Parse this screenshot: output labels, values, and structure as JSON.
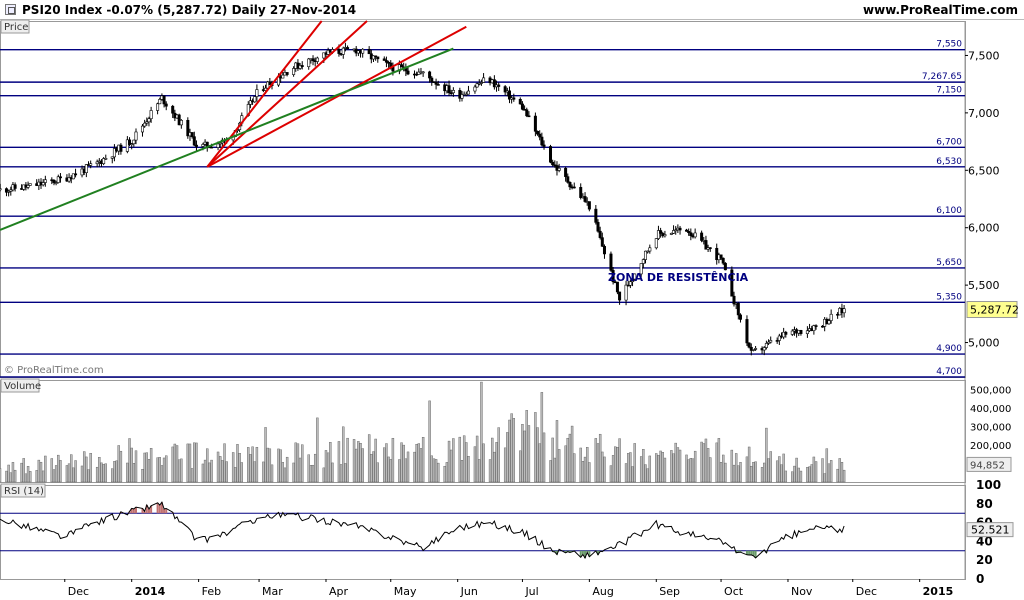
{
  "header": {
    "title": "PSI20 Index   -0.07% (5,287.72)   Daily   27-Nov-2014",
    "brand": "www.ProRealTime.com"
  },
  "panels": {
    "price_label": "Price",
    "volume_label": "Volume",
    "rsi_label": "RSI (14)",
    "watermark": "© ProRealTime.com"
  },
  "colors": {
    "level_line": "#000080",
    "trend_red": "#dd0000",
    "trend_green": "#208020",
    "rsi_over": "#c07070",
    "rsi_under": "#6a9a6a",
    "last_price_bg": "#ffff90",
    "volume_bar": "#bbbbbb"
  },
  "annotation": {
    "text": "ZONA DE RESISTÊNCIA",
    "color": "#000080"
  },
  "chart_data": [
    {
      "type": "candlestick",
      "title": "PSI20 Index",
      "ylim": [
        4700,
        7800
      ],
      "y_ticks": [
        5000,
        5500,
        6000,
        6500,
        7000,
        7500
      ],
      "y_tick_labels": [
        "5,000",
        "5,500",
        "6,000",
        "6,500",
        "7,000",
        "7,500"
      ],
      "last_value": 5287.72,
      "last_value_label": "5,287.72",
      "horizontal_levels": [
        {
          "value": 7550,
          "label": "7,550"
        },
        {
          "value": 7267.65,
          "label": "7,267.65"
        },
        {
          "value": 7150,
          "label": "7,150"
        },
        {
          "value": 6700,
          "label": "6,700"
        },
        {
          "value": 6530,
          "label": "6,530"
        },
        {
          "value": 6100,
          "label": "6,100"
        },
        {
          "value": 5650,
          "label": "5,650"
        },
        {
          "value": 5350,
          "label": "5,350"
        },
        {
          "value": 4900,
          "label": "4,900"
        },
        {
          "value": 4700,
          "label": "4,700"
        }
      ],
      "trend_lines": [
        {
          "color": "red",
          "from": [
            "2014-02-05",
            6530
          ],
          "to": [
            "2014-03-30",
            7800
          ]
        },
        {
          "color": "red",
          "from": [
            "2014-02-05",
            6530
          ],
          "to": [
            "2014-04-20",
            7800
          ]
        },
        {
          "color": "red",
          "from": [
            "2014-02-05",
            6530
          ],
          "to": [
            "2014-06-05",
            7750
          ]
        },
        {
          "color": "green",
          "from": [
            "2013-11-01",
            5980
          ],
          "to": [
            "2014-05-30",
            7560
          ]
        }
      ],
      "x_dates": [
        "2013-11-01",
        "2013-11-15",
        "2013-12-01",
        "2013-12-15",
        "2014-01-01",
        "2014-01-15",
        "2014-02-01",
        "2014-02-15",
        "2014-03-01",
        "2014-03-15",
        "2014-04-01",
        "2014-04-15",
        "2014-05-01",
        "2014-05-15",
        "2014-06-01",
        "2014-06-15",
        "2014-07-01",
        "2014-07-15",
        "2014-08-01",
        "2014-08-15",
        "2014-09-01",
        "2014-09-15",
        "2014-10-01",
        "2014-10-15",
        "2014-11-01",
        "2014-11-15",
        "2014-11-27"
      ],
      "close": [
        6330,
        6360,
        6430,
        6550,
        6760,
        7130,
        6700,
        6760,
        7200,
        7380,
        7520,
        7550,
        7400,
        7350,
        7150,
        7300,
        7050,
        6560,
        6190,
        5380,
        5940,
        5990,
        5720,
        4900,
        5080,
        5150,
        5287.72
      ]
    },
    {
      "type": "bar",
      "title": "Volume",
      "ylim": [
        0,
        550000
      ],
      "y_ticks": [
        100000,
        200000,
        300000,
        400000,
        500000
      ],
      "y_tick_labels": [
        "100,000",
        "200,000",
        "300,000",
        "400,000",
        "500,000"
      ],
      "last_value_label": "94,852",
      "x_dates": [
        "2013-11-01",
        "2013-12-01",
        "2014-01-01",
        "2014-02-01",
        "2014-03-01",
        "2014-04-01",
        "2014-05-01",
        "2014-06-01",
        "2014-07-01",
        "2014-08-01",
        "2014-09-01",
        "2014-10-01",
        "2014-11-01",
        "2014-11-27"
      ],
      "values": [
        90000,
        110000,
        140000,
        160000,
        150000,
        170000,
        200000,
        180000,
        300000,
        200000,
        150000,
        180000,
        110000,
        94852
      ]
    },
    {
      "type": "line",
      "title": "RSI (14)",
      "ylim": [
        0,
        100
      ],
      "y_ticks": [
        0,
        20,
        40,
        60,
        80,
        100
      ],
      "y_tick_labels": [
        "0",
        "20",
        "40",
        "60",
        "80",
        "100"
      ],
      "bands": [
        30,
        70
      ],
      "last_value_label": "52.521",
      "x_dates": [
        "2013-11-01",
        "2013-11-15",
        "2013-12-01",
        "2013-12-15",
        "2014-01-01",
        "2014-01-15",
        "2014-02-01",
        "2014-02-15",
        "2014-03-01",
        "2014-03-15",
        "2014-04-01",
        "2014-04-15",
        "2014-05-01",
        "2014-05-15",
        "2014-06-01",
        "2014-06-15",
        "2014-07-01",
        "2014-07-15",
        "2014-08-01",
        "2014-08-15",
        "2014-09-01",
        "2014-09-15",
        "2014-10-01",
        "2014-10-15",
        "2014-11-01",
        "2014-11-15",
        "2014-11-27"
      ],
      "values": [
        65,
        55,
        45,
        60,
        72,
        80,
        40,
        50,
        66,
        68,
        62,
        56,
        45,
        33,
        55,
        60,
        50,
        30,
        25,
        36,
        58,
        48,
        40,
        22,
        45,
        55,
        52.52
      ]
    }
  ],
  "x_axis": {
    "labels": [
      {
        "date": "2013-12-01",
        "text": "Dec",
        "bold": false
      },
      {
        "date": "2014-01-01",
        "text": "2014",
        "bold": true
      },
      {
        "date": "2014-02-01",
        "text": "Feb",
        "bold": false
      },
      {
        "date": "2014-03-01",
        "text": "Mar",
        "bold": false
      },
      {
        "date": "2014-04-01",
        "text": "Apr",
        "bold": false
      },
      {
        "date": "2014-05-01",
        "text": "May",
        "bold": false
      },
      {
        "date": "2014-06-01",
        "text": "Jun",
        "bold": false
      },
      {
        "date": "2014-07-01",
        "text": "Jul",
        "bold": false
      },
      {
        "date": "2014-08-01",
        "text": "Aug",
        "bold": false
      },
      {
        "date": "2014-09-01",
        "text": "Sep",
        "bold": false
      },
      {
        "date": "2014-10-01",
        "text": "Oct",
        "bold": false
      },
      {
        "date": "2014-11-01",
        "text": "Nov",
        "bold": false
      },
      {
        "date": "2014-12-01",
        "text": "Dec",
        "bold": false
      },
      {
        "date": "2015-01-01",
        "text": "2015",
        "bold": true
      }
    ]
  }
}
